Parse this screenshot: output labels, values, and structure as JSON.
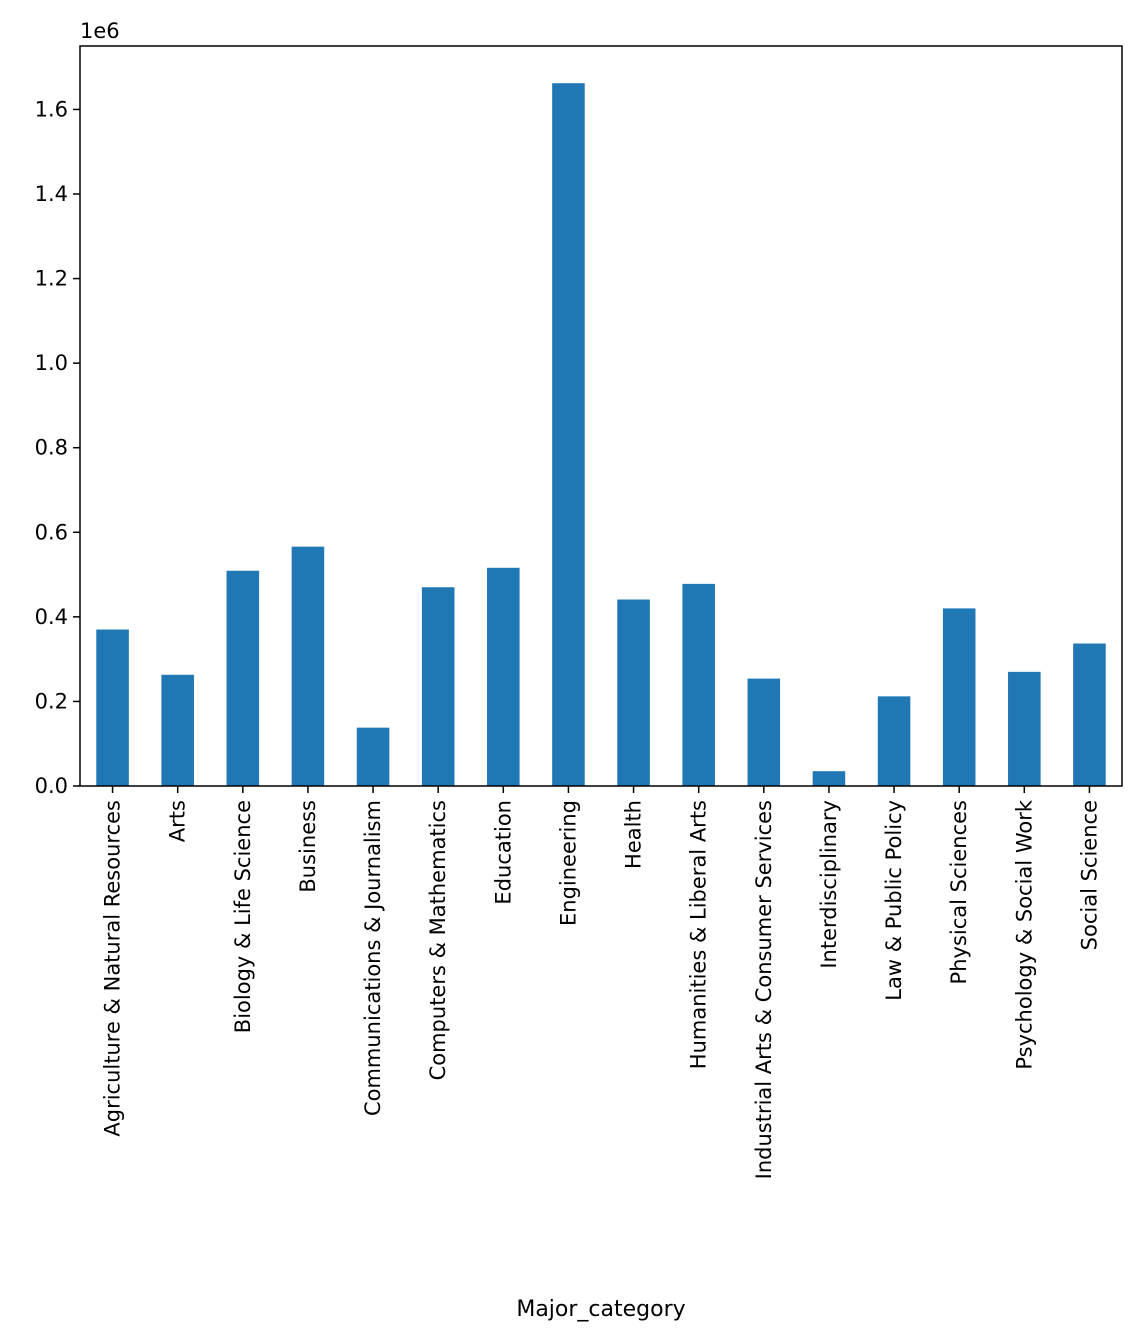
{
  "chart_data": {
    "type": "bar",
    "categories": [
      "Agriculture & Natural Resources",
      "Arts",
      "Biology & Life Science",
      "Business",
      "Communications & Journalism",
      "Computers & Mathematics",
      "Education",
      "Engineering",
      "Health",
      "Humanities & Liberal Arts",
      "Industrial Arts & Consumer Services",
      "Interdisciplinary",
      "Law & Public Policy",
      "Physical Sciences",
      "Psychology & Social Work",
      "Social Science"
    ],
    "values": [
      370000,
      263000,
      509000,
      566000,
      138000,
      470000,
      516000,
      1662000,
      441000,
      478000,
      254000,
      35000,
      212000,
      420000,
      270000,
      337000
    ],
    "title": "",
    "xlabel": "Major_category",
    "ylabel": "",
    "ylim": [
      0,
      1750000
    ],
    "yticks": [
      0,
      200000,
      400000,
      600000,
      800000,
      1000000,
      1200000,
      1400000,
      1600000
    ],
    "ytick_labels": [
      "0.0",
      "0.2",
      "0.4",
      "0.6",
      "0.8",
      "1.0",
      "1.2",
      "1.4",
      "1.6"
    ],
    "y_offset_label": "1e6",
    "bar_color": "#1f77b4",
    "grid": false,
    "legend": "none"
  }
}
